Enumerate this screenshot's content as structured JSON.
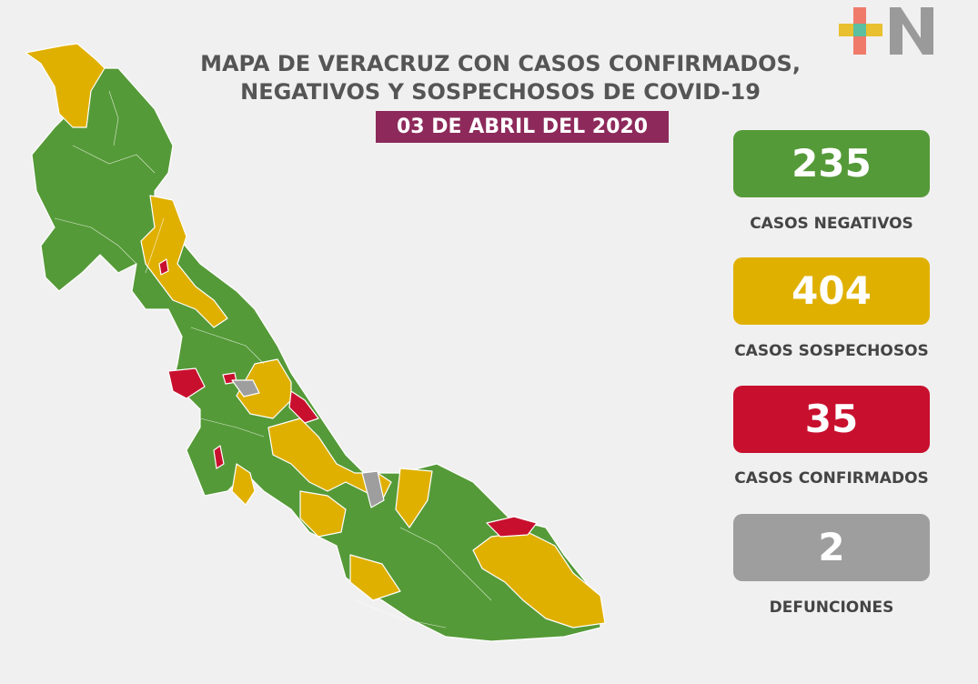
{
  "header": {
    "title_line1": "MAPA DE VERACRUZ CON CASOS CONFIRMADOS,",
    "title_line2": "NEGATIVOS Y SOSPECHOSOS DE COVID-19",
    "date": "03 DE ABRIL DEL 2020"
  },
  "logo": {
    "icon": "plus-n-logo",
    "colors": [
      "#f07a6a",
      "#e8c030",
      "#5bbfa0",
      "#7a9bd0",
      "#9a9a9a"
    ]
  },
  "stats": [
    {
      "value": "235",
      "label": "CASOS NEGATIVOS",
      "color": "#559a38"
    },
    {
      "value": "404",
      "label": "CASOS SOSPECHOSOS",
      "color": "#e0b000"
    },
    {
      "value": "35",
      "label": "CASOS CONFIRMADOS",
      "color": "#c8102e"
    },
    {
      "value": "2",
      "label": "DEFUNCIONES",
      "color": "#9e9e9e"
    }
  ],
  "map": {
    "region": "Veracruz",
    "colors": {
      "negative": "#559a38",
      "suspected": "#e0b000",
      "confirmed": "#c8102e",
      "death": "#9e9e9e"
    }
  }
}
